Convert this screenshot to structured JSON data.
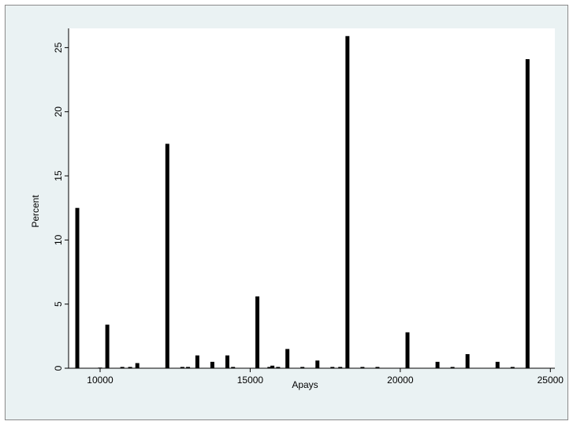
{
  "chart_data": {
    "type": "bar",
    "xlabel": "Apays",
    "ylabel": "Percent",
    "xlim": [
      8950,
      25150
    ],
    "ylim": [
      0,
      26.5
    ],
    "xticks": [
      10000,
      15000,
      20000,
      25000
    ],
    "xtick_labels": [
      "10000",
      "15000",
      "20000",
      "25000"
    ],
    "yticks": [
      0,
      5,
      10,
      15,
      20,
      25
    ],
    "ytick_labels": [
      "0",
      "5",
      "10",
      "15",
      "20",
      "25"
    ],
    "grid": false,
    "legend": "none",
    "bar_color": "#000000",
    "plot_background": "#ffffff",
    "frame_background": "#eaf2f3",
    "x": [
      9240,
      10000,
      10240,
      10740,
      11000,
      11240,
      12240,
      12740,
      12930,
      13240,
      13740,
      14240,
      14430,
      15240,
      15640,
      15740,
      15930,
      16240,
      16740,
      17240,
      17740,
      18000,
      18240,
      18740,
      19240,
      20240,
      21240,
      21740,
      22240,
      23240,
      23740,
      24240
    ],
    "values": [
      12.5,
      0.05,
      3.4,
      0.1,
      0.1,
      0.4,
      17.5,
      0.1,
      0.1,
      1.0,
      0.5,
      1.0,
      0.1,
      5.6,
      0.1,
      0.2,
      0.1,
      1.5,
      0.1,
      0.6,
      0.1,
      0.1,
      25.9,
      0.1,
      0.1,
      2.8,
      0.5,
      0.1,
      1.1,
      0.5,
      0.1,
      24.1
    ]
  }
}
